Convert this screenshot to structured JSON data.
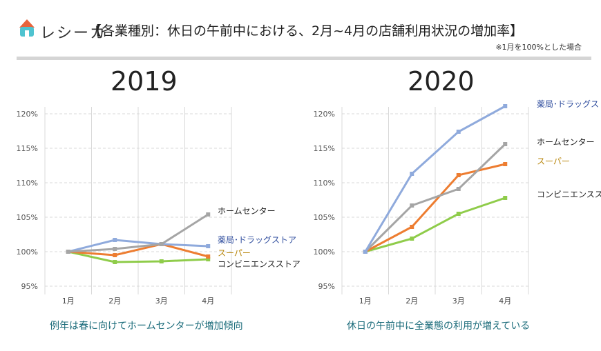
{
  "header": {
    "brand": "レシーカ",
    "title": "【各業種別：休日の午前中における、2月~4月の店舗利用状況の増加率】",
    "note": "※1月を100%とした場合"
  },
  "colors": {
    "drug": "#8faadc",
    "home": "#a5a5a5",
    "super": "#ed7d31",
    "conv": "#8fcc4a",
    "drug_label": "#2f4d9e",
    "super_label": "#b8860b",
    "caption": "#1a6b7a"
  },
  "chart_data": [
    {
      "type": "line",
      "title": "2019",
      "categories": [
        "1月",
        "2月",
        "3月",
        "4月"
      ],
      "ylim": [
        95,
        120
      ],
      "yticks": [
        "95%",
        "100%",
        "105%",
        "110%",
        "115%",
        "120%"
      ],
      "grid": true,
      "legend": "right (inline labels)",
      "caption": "例年は春に向けてホームセンターが増加傾向",
      "series": [
        {
          "name": "ホームセンター",
          "key": "home",
          "values": [
            100,
            100.4,
            101.1,
            105.4
          ]
        },
        {
          "name": "薬局･ドラッグストア",
          "key": "drug",
          "values": [
            100,
            101.7,
            101.1,
            100.8
          ]
        },
        {
          "name": "スーパー",
          "key": "super",
          "values": [
            100,
            99.5,
            101.1,
            99.3
          ]
        },
        {
          "name": "コンビニエンスストア",
          "key": "conv",
          "values": [
            100,
            98.5,
            98.6,
            98.9
          ]
        }
      ]
    },
    {
      "type": "line",
      "title": "2020",
      "categories": [
        "1月",
        "2月",
        "3月",
        "4月"
      ],
      "ylim": [
        95,
        120
      ],
      "yticks": [
        "95%",
        "100%",
        "105%",
        "110%",
        "115%",
        "120%"
      ],
      "grid": true,
      "legend": "right (inline labels)",
      "caption": "休日の午前中に全業態の利用が増えている",
      "series": [
        {
          "name": "薬局･ドラッグストア",
          "key": "drug",
          "values": [
            100,
            111.3,
            117.4,
            121.1
          ]
        },
        {
          "name": "ホームセンター",
          "key": "home",
          "values": [
            100,
            106.7,
            109.1,
            115.6
          ]
        },
        {
          "name": "スーパー",
          "key": "super",
          "values": [
            100,
            103.6,
            111.1,
            112.7
          ]
        },
        {
          "name": "コンビニエンスストア",
          "key": "conv",
          "values": [
            100,
            101.9,
            105.5,
            107.8
          ]
        }
      ]
    }
  ]
}
